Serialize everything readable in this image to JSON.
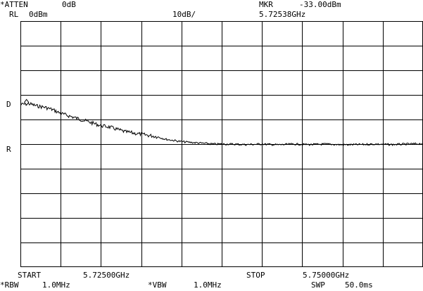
{
  "header": {
    "atten_label": "*ATTEN",
    "atten_value": "0dB",
    "rl_label": "RL",
    "rl_value": "0dBm",
    "scale": "10dB/",
    "marker_label": "MKR",
    "marker_amplitude": "-33.00dBm",
    "marker_frequency": "5.72538GHz"
  },
  "side_labels": {
    "d_line": "D",
    "r_line": "R"
  },
  "footer": {
    "start_label": "START",
    "start_value": "5.72500GHz",
    "stop_label": "STOP",
    "stop_value": "5.75000GHz",
    "rbw_label": "*RBW",
    "rbw_value": "1.0MHz",
    "vbw_label": "*VBW",
    "vbw_value": "1.0MHz",
    "sweep_label": "SWP",
    "sweep_value": "50.0ms"
  },
  "chart_data": {
    "type": "line",
    "title": "",
    "xlabel": "",
    "ylabel": "",
    "x_unit": "GHz",
    "y_unit": "dBm",
    "xlim": [
      5.725,
      5.75
    ],
    "ylim": [
      -100,
      0
    ],
    "grid": true,
    "x_divisions": 10,
    "y_divisions": 10,
    "marker": {
      "x": 5.72538,
      "y": -33.0
    },
    "series": [
      {
        "x": [
          5.725,
          5.7255,
          5.726,
          5.7265,
          5.727,
          5.7275,
          5.728,
          5.7285,
          5.729,
          5.7295,
          5.73,
          5.7305,
          5.731,
          5.7315,
          5.732,
          5.7325,
          5.733,
          5.7335,
          5.734,
          5.7345,
          5.735,
          5.736,
          5.737,
          5.738,
          5.739,
          5.74,
          5.741,
          5.742,
          5.743,
          5.744,
          5.745,
          5.746,
          5.747,
          5.748,
          5.749,
          5.75
        ],
        "y": [
          -34.0,
          -33.5,
          -34.5,
          -35.0,
          -36.0,
          -37.5,
          -38.5,
          -39.5,
          -40.5,
          -41.5,
          -42.5,
          -43.0,
          -44.0,
          -45.0,
          -45.5,
          -46.0,
          -46.5,
          -47.0,
          -48.0,
          -48.5,
          -49.0,
          -49.5,
          -50.0,
          -50.0,
          -50.2,
          -50.0,
          -50.3,
          -50.0,
          -50.2,
          -50.0,
          -50.3,
          -50.2,
          -50.0,
          -50.2,
          -50.0,
          -49.8
        ],
        "color": "#000000"
      }
    ]
  }
}
